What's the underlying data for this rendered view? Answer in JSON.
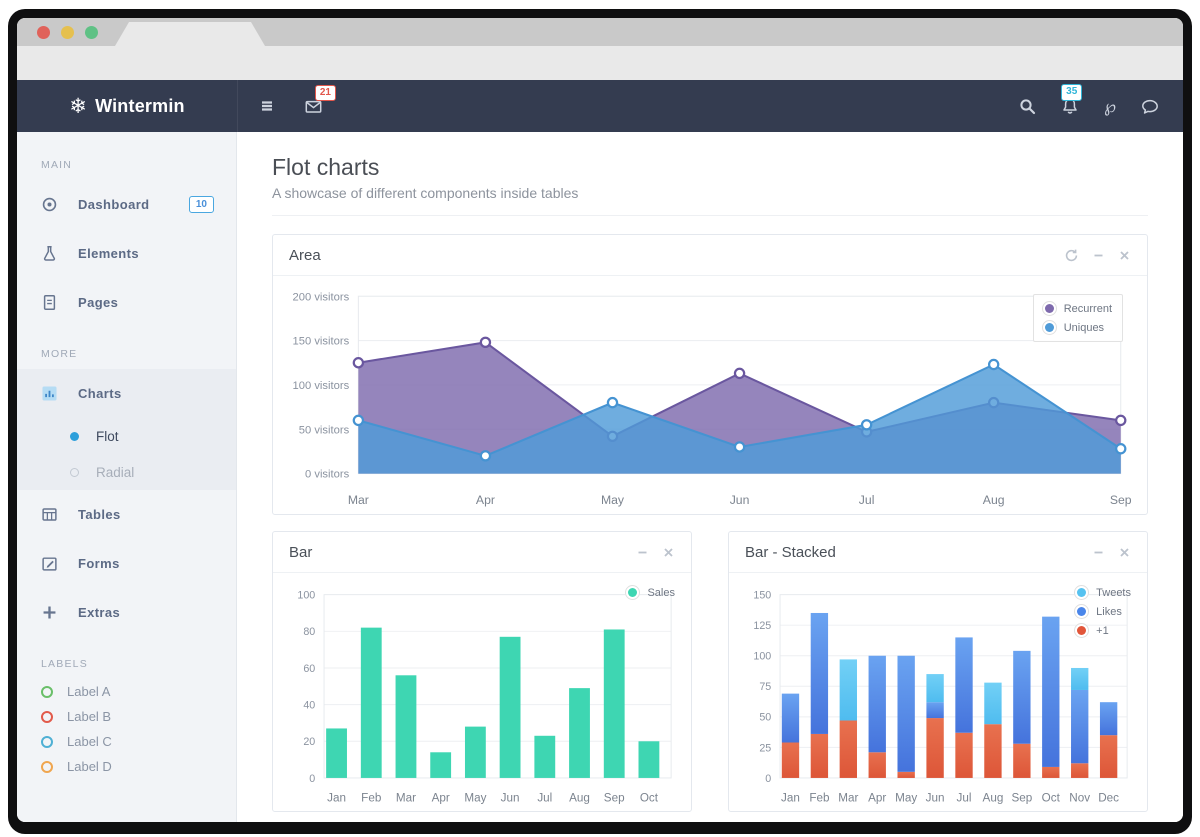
{
  "window": {
    "traffic_lights": [
      "close",
      "minimize",
      "maximize"
    ]
  },
  "navbar": {
    "brand": "Wintermin",
    "brand_icon": "snowflake-icon",
    "mail_badge": "21",
    "bell_badge": "35"
  },
  "sidebar": {
    "sections": [
      {
        "label": "MAIN",
        "items": [
          {
            "icon": "target-icon",
            "label": "Dashboard",
            "badge": "10"
          },
          {
            "icon": "flask-icon",
            "label": "Elements"
          },
          {
            "icon": "file-icon",
            "label": "Pages"
          }
        ]
      },
      {
        "label": "MORE",
        "items": [
          {
            "icon": "bar-chart-icon",
            "label": "Charts",
            "active": true,
            "children": [
              {
                "label": "Flot",
                "active": true
              },
              {
                "label": "Radial",
                "active": false
              }
            ]
          },
          {
            "icon": "table-icon",
            "label": "Tables"
          },
          {
            "icon": "pencil-icon",
            "label": "Forms"
          },
          {
            "icon": "plus-icon",
            "label": "Extras"
          }
        ]
      },
      {
        "label": "LABELS",
        "items": [
          {
            "icon": "ring-icon",
            "ring_color": "#6abf69",
            "label": "Label A"
          },
          {
            "icon": "ring-icon",
            "ring_color": "#e25a4b",
            "label": "Label B"
          },
          {
            "icon": "ring-icon",
            "ring_color": "#4fb0d4",
            "label": "Label C"
          },
          {
            "icon": "ring-icon",
            "ring_color": "#f0a64f",
            "label": "Label D"
          }
        ]
      }
    ]
  },
  "page": {
    "title": "Flot charts",
    "subtitle": "A showcase of different components inside tables"
  },
  "panels": [
    {
      "title": "Area",
      "actions": [
        "refresh-icon",
        "minimize-icon",
        "close-icon"
      ]
    },
    {
      "title": "Bar",
      "actions": [
        "minimize-icon",
        "close-icon"
      ]
    },
    {
      "title": "Bar - Stacked",
      "actions": [
        "minimize-icon",
        "close-icon"
      ]
    }
  ],
  "chart_data": [
    {
      "type": "area",
      "title": "Area",
      "categories": [
        "Mar",
        "Apr",
        "May",
        "Jun",
        "Jul",
        "Aug",
        "Sep"
      ],
      "series": [
        {
          "name": "Recurrent",
          "color": "#7e6aad",
          "line_color": "#6a579f",
          "values": [
            125,
            148,
            42,
            113,
            47,
            80,
            60
          ]
        },
        {
          "name": "Uniques",
          "color": "#4f9bd8",
          "line_color": "#4593d2",
          "values": [
            60,
            20,
            80,
            30,
            55,
            123,
            28
          ]
        }
      ],
      "ylim": [
        0,
        200
      ],
      "ytick_step": 50,
      "ytick_suffix": " visitors",
      "grid": true,
      "legend_position": "top-right"
    },
    {
      "type": "bar",
      "title": "Bar",
      "categories": [
        "Jan",
        "Feb",
        "Mar",
        "Apr",
        "May",
        "Jun",
        "Jul",
        "Aug",
        "Sep",
        "Oct"
      ],
      "series": [
        {
          "name": "Sales",
          "color": "#3ed6b2",
          "values": [
            27,
            82,
            56,
            14,
            28,
            77,
            23,
            49,
            81,
            20
          ]
        }
      ],
      "ylim": [
        0,
        100
      ],
      "ytick_step": 20,
      "ytick_suffix": "",
      "grid": true,
      "legend_position": "top-right"
    },
    {
      "type": "bar_stacked",
      "title": "Bar - Stacked",
      "categories": [
        "Jan",
        "Feb",
        "Mar",
        "Apr",
        "May",
        "Jun",
        "Jul",
        "Aug",
        "Sep",
        "Oct",
        "Nov",
        "Dec"
      ],
      "series": [
        {
          "name": "+1",
          "color": "#dd5638",
          "color_top": "#e8714f",
          "legend_color": "#e2563a",
          "values": [
            29,
            36,
            47,
            21,
            5,
            49,
            37,
            44,
            28,
            9,
            12,
            35
          ]
        },
        {
          "name": "Likes",
          "color": "#4573dc",
          "color_top": "#6aa3f1",
          "legend_color": "#4a86ea",
          "values": [
            40,
            99,
            0,
            79,
            95,
            13,
            78,
            0,
            76,
            123,
            60,
            27
          ]
        },
        {
          "name": "Tweets",
          "color": "#4fbcef",
          "color_top": "#72d0f6",
          "legend_color": "#56c2f0",
          "values": [
            0,
            0,
            50,
            0,
            0,
            23,
            0,
            34,
            0,
            0,
            18,
            0
          ]
        }
      ],
      "ylim": [
        0,
        150
      ],
      "ytick_step": 25,
      "ytick_suffix": "",
      "grid": true,
      "legend_position": "top-right",
      "legend_order": "reverse"
    }
  ]
}
